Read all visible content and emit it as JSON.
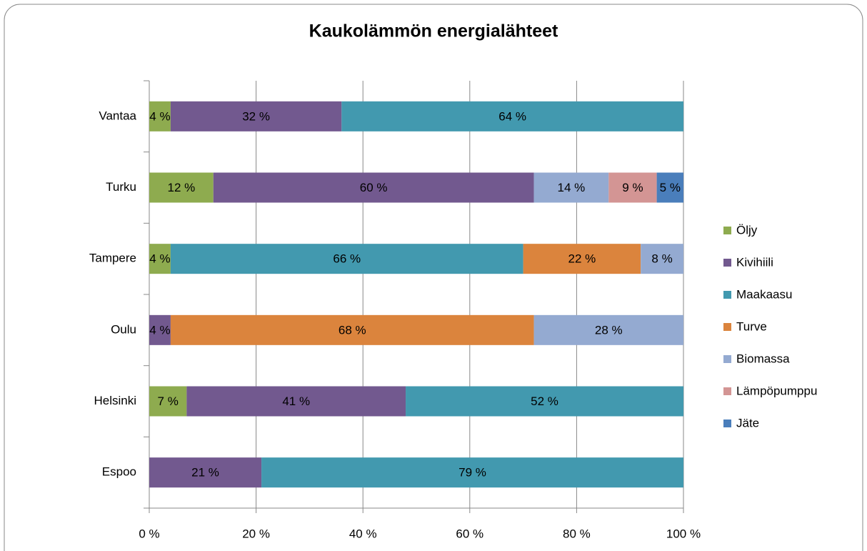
{
  "chart_data": {
    "type": "stacked-barh",
    "title": "Kaukolämmön energialähteet",
    "categories": [
      "Espoo",
      "Helsinki",
      "Oulu",
      "Tampere",
      "Turku",
      "Vantaa"
    ],
    "series": [
      {
        "name": "Öljy",
        "color": "#8eab4f",
        "values": [
          null,
          7,
          null,
          4,
          12,
          4
        ],
        "value_labels": [
          null,
          "7 %",
          null,
          "4 %",
          "12 %",
          "4 %"
        ]
      },
      {
        "name": "Kivihiili",
        "color": "#72598f",
        "values": [
          21,
          41,
          4,
          null,
          60,
          32
        ],
        "value_labels": [
          "21 %",
          "41 %",
          "4 %",
          null,
          "60 %",
          "32 %"
        ]
      },
      {
        "name": "Maakaasu",
        "color": "#4299af",
        "values": [
          79,
          52,
          null,
          66,
          null,
          64
        ],
        "value_labels": [
          "79 %",
          "52 %",
          null,
          "66 %",
          null,
          "64 %"
        ]
      },
      {
        "name": "Turve",
        "color": "#db843d",
        "values": [
          null,
          null,
          68,
          22,
          null,
          null
        ],
        "value_labels": [
          null,
          null,
          "68 %",
          "22 %",
          null,
          null
        ]
      },
      {
        "name": "Biomassa",
        "color": "#94aad1",
        "values": [
          null,
          null,
          28,
          8,
          14,
          null
        ],
        "value_labels": [
          null,
          null,
          "28 %",
          "8 %",
          "14 %",
          null
        ]
      },
      {
        "name": "Lämpöpumppu",
        "color": "#d39594",
        "values": [
          null,
          null,
          null,
          null,
          9,
          null
        ],
        "value_labels": [
          null,
          null,
          null,
          null,
          "9 %",
          null
        ]
      },
      {
        "name": "Jäte",
        "color": "#4a7ebb",
        "values": [
          null,
          null,
          null,
          null,
          5,
          null
        ],
        "value_labels": [
          null,
          null,
          null,
          null,
          "5 %",
          null
        ]
      }
    ],
    "xlim": [
      0,
      100
    ],
    "xticks": [
      {
        "value": 0,
        "label": "0 %"
      },
      {
        "value": 20,
        "label": "20 %"
      },
      {
        "value": 40,
        "label": "40 %"
      },
      {
        "value": 60,
        "label": "60 %"
      },
      {
        "value": 80,
        "label": "80 %"
      },
      {
        "value": 100,
        "label": "100 %"
      }
    ],
    "grid": true,
    "legend": "right"
  }
}
